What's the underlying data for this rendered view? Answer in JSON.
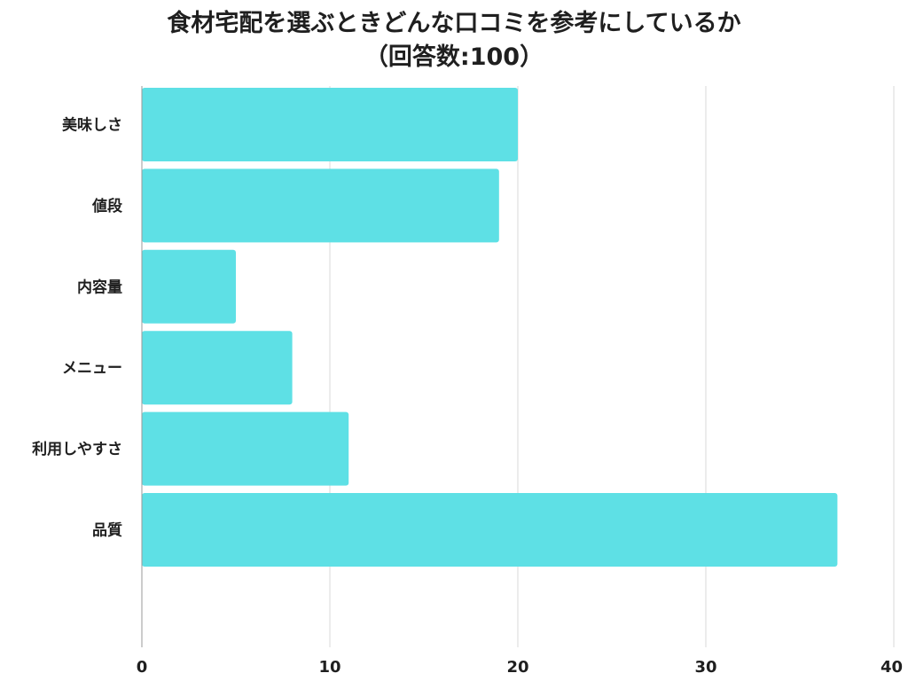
{
  "chart_data": {
    "type": "bar",
    "orientation": "horizontal",
    "title": "食材宅配を選ぶときどんな口コミを参考にしているか",
    "subtitle": "（回答数:100）",
    "categories": [
      "美味しさ",
      "値段",
      "内容量",
      "メニュー",
      "利用しやすさ",
      "品質"
    ],
    "values": [
      20,
      19,
      5,
      8,
      11,
      37
    ],
    "xlim": [
      0,
      40
    ],
    "xticks": [
      "0",
      "10",
      "20",
      "30",
      "40"
    ],
    "xlabel": "",
    "ylabel": "",
    "grid": true,
    "bar_color": "#5ee0e5",
    "grid_color": "#d9d9d9"
  }
}
